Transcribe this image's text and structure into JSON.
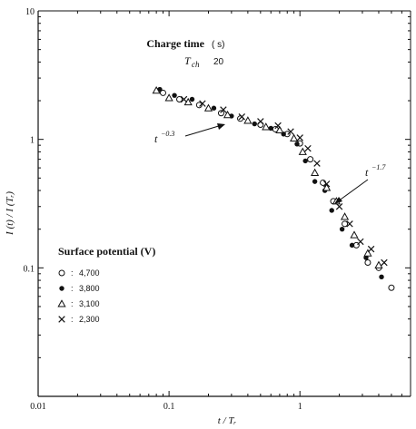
{
  "chart_data": {
    "type": "scatter",
    "title": "",
    "xlabel": "t / Tᵣ",
    "ylabel": "I (t) / I (Tᵣ)",
    "xscale": "log",
    "yscale": "log",
    "xlim": [
      0.01,
      7
    ],
    "ylim": [
      0.01,
      10
    ],
    "x_ticks": [
      "0.01",
      "0.1",
      "1"
    ],
    "y_ticks": [
      "0.1",
      "1",
      "10"
    ],
    "grid": false,
    "legend": {
      "title": "Surface potential (V)",
      "placement": "bottom-left",
      "entries": [
        {
          "marker": "○",
          "sep": ":",
          "label": "4,700"
        },
        {
          "marker": "●",
          "sep": ":",
          "label": "3,800"
        },
        {
          "marker": "△",
          "sep": ":",
          "label": "3,100"
        },
        {
          "marker": "×",
          "sep": ":",
          "label": "2,300"
        }
      ]
    },
    "annotations": {
      "charge_time_title": "Charge time",
      "charge_time_unit": "( s)",
      "tch_symbol": "T",
      "tch_sub": "ch",
      "tch_value": "20",
      "slope1_base": "t",
      "slope1_exp": "−0.3",
      "slope2_base": "t",
      "slope2_exp": "−1.7"
    },
    "series": [
      {
        "marker": "open-circle",
        "points": [
          [
            0.09,
            2.3
          ],
          [
            0.12,
            2.05
          ],
          [
            0.17,
            1.85
          ],
          [
            0.25,
            1.6
          ],
          [
            0.35,
            1.45
          ],
          [
            0.5,
            1.3
          ],
          [
            0.65,
            1.2
          ],
          [
            0.8,
            1.1
          ],
          [
            1.0,
            0.93
          ],
          [
            1.2,
            0.7
          ],
          [
            1.5,
            0.46
          ],
          [
            1.8,
            0.33
          ],
          [
            2.2,
            0.22
          ],
          [
            2.7,
            0.15
          ],
          [
            3.3,
            0.11
          ],
          [
            4.0,
            0.1
          ],
          [
            5.0,
            0.07
          ]
        ]
      },
      {
        "marker": "filled-circle",
        "points": [
          [
            0.085,
            2.45
          ],
          [
            0.11,
            2.2
          ],
          [
            0.15,
            2.05
          ],
          [
            0.22,
            1.75
          ],
          [
            0.3,
            1.52
          ],
          [
            0.45,
            1.32
          ],
          [
            0.6,
            1.22
          ],
          [
            0.75,
            1.1
          ],
          [
            0.95,
            0.92
          ],
          [
            1.1,
            0.68
          ],
          [
            1.3,
            0.47
          ],
          [
            1.55,
            0.4
          ],
          [
            1.75,
            0.28
          ],
          [
            2.1,
            0.2
          ],
          [
            2.5,
            0.15
          ],
          [
            3.2,
            0.12
          ],
          [
            4.2,
            0.085
          ]
        ]
      },
      {
        "marker": "triangle",
        "points": [
          [
            0.08,
            2.4
          ],
          [
            0.1,
            2.1
          ],
          [
            0.14,
            1.95
          ],
          [
            0.2,
            1.75
          ],
          [
            0.28,
            1.55
          ],
          [
            0.4,
            1.4
          ],
          [
            0.55,
            1.25
          ],
          [
            0.7,
            1.18
          ],
          [
            0.9,
            1.02
          ],
          [
            1.05,
            0.8
          ],
          [
            1.3,
            0.55
          ],
          [
            1.6,
            0.42
          ],
          [
            1.9,
            0.33
          ],
          [
            2.2,
            0.25
          ],
          [
            2.6,
            0.18
          ],
          [
            3.3,
            0.13
          ],
          [
            4.0,
            0.105
          ]
        ]
      },
      {
        "marker": "cross",
        "points": [
          [
            0.13,
            2.05
          ],
          [
            0.18,
            1.9
          ],
          [
            0.26,
            1.7
          ],
          [
            0.36,
            1.5
          ],
          [
            0.5,
            1.38
          ],
          [
            0.68,
            1.28
          ],
          [
            0.85,
            1.15
          ],
          [
            1.0,
            1.03
          ],
          [
            1.15,
            0.85
          ],
          [
            1.35,
            0.65
          ],
          [
            1.6,
            0.45
          ],
          [
            2.0,
            0.3
          ],
          [
            2.4,
            0.22
          ],
          [
            2.9,
            0.16
          ],
          [
            3.5,
            0.14
          ],
          [
            4.4,
            0.11
          ]
        ]
      }
    ]
  }
}
